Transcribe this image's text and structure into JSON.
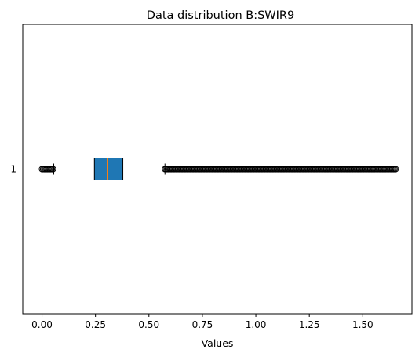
{
  "chart_data": {
    "type": "boxplot",
    "orientation": "horizontal",
    "title": "Data distribution B:SWIR9",
    "xlabel": "Values",
    "ylabel": "",
    "xlim": [
      -0.09,
      1.73
    ],
    "x_ticks": [
      0.0,
      0.25,
      0.5,
      0.75,
      1.0,
      1.25,
      1.5
    ],
    "x_tick_labels": [
      "0.00",
      "0.25",
      "0.50",
      "0.75",
      "1.00",
      "1.25",
      "1.50"
    ],
    "y_tick_labels": [
      "1"
    ],
    "grid": false,
    "colors": {
      "box_fill": "#1f77b4",
      "median": "#ff7f0e",
      "lines": "#000000"
    },
    "boxes": [
      {
        "label": "1",
        "whisker_low": 0.055,
        "q1": 0.245,
        "median": 0.308,
        "q3": 0.378,
        "whisker_high": 0.575,
        "outliers_low_range": [
          0.0,
          0.055
        ],
        "outliers_high_range": [
          0.575,
          1.655
        ]
      }
    ]
  }
}
